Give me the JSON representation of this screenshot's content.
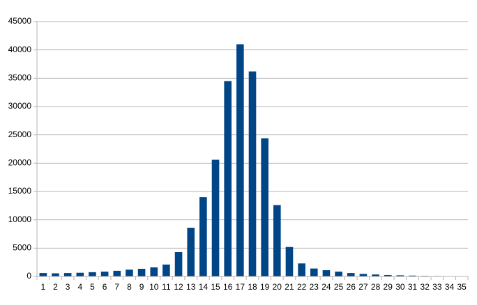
{
  "chart_data": {
    "type": "bar",
    "categories": [
      "1",
      "2",
      "3",
      "4",
      "5",
      "6",
      "7",
      "8",
      "9",
      "10",
      "11",
      "12",
      "13",
      "14",
      "15",
      "16",
      "17",
      "18",
      "19",
      "20",
      "21",
      "22",
      "23",
      "24",
      "25",
      "26",
      "27",
      "28",
      "29",
      "30",
      "31",
      "32",
      "33",
      "34",
      "35"
    ],
    "values": [
      600,
      550,
      600,
      650,
      750,
      850,
      1000,
      1200,
      1350,
      1600,
      2100,
      4300,
      8600,
      14000,
      20600,
      34500,
      41000,
      36200,
      24400,
      12600,
      5200,
      2300,
      1400,
      1100,
      850,
      600,
      450,
      350,
      250,
      200,
      150,
      100,
      80,
      60,
      50
    ],
    "color": "#004586",
    "ylim": [
      0,
      45000
    ],
    "yticks": [
      0,
      5000,
      10000,
      15000,
      20000,
      25000,
      30000,
      35000,
      40000,
      45000
    ],
    "grid": true
  }
}
